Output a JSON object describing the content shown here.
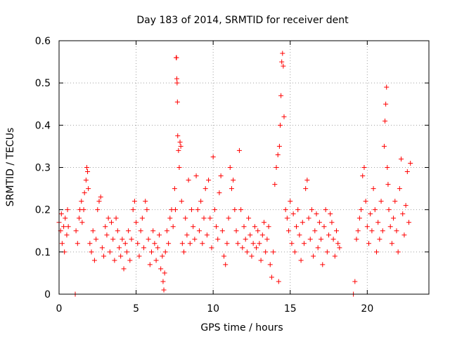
{
  "chart_data": {
    "type": "scatter",
    "title": "Day 183 of 2014, SRMTID for receiver dent",
    "xlabel": "GPS time / hours",
    "ylabel": "SRMTID / TECUs",
    "xlim": [
      0,
      24
    ],
    "ylim": [
      0,
      0.6
    ],
    "xticks": [
      0,
      5,
      10,
      15,
      20
    ],
    "yticks": [
      0,
      0.1,
      0.2,
      0.3,
      0.4,
      0.5,
      0.6
    ],
    "ytick_labels": [
      "0",
      "0.1",
      "0.2",
      "0.3",
      "0.4",
      "0.5",
      "0.6"
    ],
    "grid": true,
    "marker": "plus",
    "color": "#ff0000",
    "series": [
      {
        "name": "SRMTID",
        "points": [
          [
            0.0,
            0.17
          ],
          [
            0.1,
            0.15
          ],
          [
            0.15,
            0.19
          ],
          [
            0.2,
            0.12
          ],
          [
            0.3,
            0.16
          ],
          [
            0.35,
            0.1
          ],
          [
            0.4,
            0.18
          ],
          [
            0.5,
            0.14
          ],
          [
            0.55,
            0.2
          ],
          [
            0.6,
            0.16
          ],
          [
            1.05,
            0.0
          ],
          [
            1.1,
            0.15
          ],
          [
            1.2,
            0.12
          ],
          [
            1.3,
            0.18
          ],
          [
            1.35,
            0.2
          ],
          [
            1.45,
            0.22
          ],
          [
            1.5,
            0.17
          ],
          [
            1.6,
            0.2
          ],
          [
            1.65,
            0.24
          ],
          [
            1.75,
            0.27
          ],
          [
            1.8,
            0.3
          ],
          [
            1.85,
            0.29
          ],
          [
            1.9,
            0.25
          ],
          [
            2.0,
            0.12
          ],
          [
            2.1,
            0.1
          ],
          [
            2.2,
            0.15
          ],
          [
            2.3,
            0.08
          ],
          [
            2.4,
            0.13
          ],
          [
            2.5,
            0.2
          ],
          [
            2.6,
            0.22
          ],
          [
            2.7,
            0.23
          ],
          [
            2.8,
            0.11
          ],
          [
            2.9,
            0.09
          ],
          [
            3.0,
            0.16
          ],
          [
            3.1,
            0.14
          ],
          [
            3.2,
            0.18
          ],
          [
            3.3,
            0.1
          ],
          [
            3.4,
            0.17
          ],
          [
            3.5,
            0.13
          ],
          [
            3.6,
            0.08
          ],
          [
            3.7,
            0.18
          ],
          [
            3.8,
            0.15
          ],
          [
            3.9,
            0.11
          ],
          [
            4.0,
            0.09
          ],
          [
            4.1,
            0.13
          ],
          [
            4.2,
            0.06
          ],
          [
            4.3,
            0.12
          ],
          [
            4.4,
            0.1
          ],
          [
            4.5,
            0.15
          ],
          [
            4.6,
            0.08
          ],
          [
            4.7,
            0.13
          ],
          [
            4.8,
            0.2
          ],
          [
            4.9,
            0.22
          ],
          [
            5.0,
            0.17
          ],
          [
            5.1,
            0.12
          ],
          [
            5.2,
            0.09
          ],
          [
            5.3,
            0.15
          ],
          [
            5.4,
            0.18
          ],
          [
            5.5,
            0.11
          ],
          [
            5.6,
            0.22
          ],
          [
            5.7,
            0.2
          ],
          [
            5.8,
            0.13
          ],
          [
            5.9,
            0.07
          ],
          [
            6.0,
            0.1
          ],
          [
            6.1,
            0.15
          ],
          [
            6.2,
            0.12
          ],
          [
            6.3,
            0.08
          ],
          [
            6.4,
            0.11
          ],
          [
            6.5,
            0.14
          ],
          [
            6.6,
            0.06
          ],
          [
            6.7,
            0.09
          ],
          [
            6.75,
            0.03
          ],
          [
            6.8,
            0.01
          ],
          [
            6.85,
            0.05
          ],
          [
            6.9,
            0.1
          ],
          [
            7.0,
            0.15
          ],
          [
            7.1,
            0.12
          ],
          [
            7.2,
            0.18
          ],
          [
            7.3,
            0.2
          ],
          [
            7.4,
            0.16
          ],
          [
            7.5,
            0.25
          ],
          [
            7.55,
            0.2
          ],
          [
            7.6,
            0.56
          ],
          [
            7.62,
            0.56
          ],
          [
            7.64,
            0.51
          ],
          [
            7.66,
            0.5
          ],
          [
            7.68,
            0.455
          ],
          [
            7.7,
            0.375
          ],
          [
            7.75,
            0.34
          ],
          [
            7.8,
            0.3
          ],
          [
            7.85,
            0.36
          ],
          [
            7.9,
            0.35
          ],
          [
            7.95,
            0.22
          ],
          [
            8.0,
            0.12
          ],
          [
            8.1,
            0.1
          ],
          [
            8.2,
            0.18
          ],
          [
            8.3,
            0.14
          ],
          [
            8.4,
            0.27
          ],
          [
            8.5,
            0.12
          ],
          [
            8.6,
            0.2
          ],
          [
            8.7,
            0.16
          ],
          [
            8.8,
            0.13
          ],
          [
            8.9,
            0.28
          ],
          [
            9.0,
            0.2
          ],
          [
            9.1,
            0.15
          ],
          [
            9.2,
            0.22
          ],
          [
            9.3,
            0.12
          ],
          [
            9.4,
            0.18
          ],
          [
            9.5,
            0.25
          ],
          [
            9.6,
            0.14
          ],
          [
            9.7,
            0.27
          ],
          [
            9.8,
            0.18
          ],
          [
            9.9,
            0.11
          ],
          [
            10.0,
            0.325
          ],
          [
            10.1,
            0.2
          ],
          [
            10.2,
            0.16
          ],
          [
            10.3,
            0.13
          ],
          [
            10.4,
            0.24
          ],
          [
            10.5,
            0.28
          ],
          [
            10.6,
            0.15
          ],
          [
            10.7,
            0.09
          ],
          [
            10.8,
            0.07
          ],
          [
            10.9,
            0.12
          ],
          [
            11.0,
            0.18
          ],
          [
            11.1,
            0.3
          ],
          [
            11.2,
            0.25
          ],
          [
            11.3,
            0.27
          ],
          [
            11.4,
            0.2
          ],
          [
            11.5,
            0.15
          ],
          [
            11.6,
            0.12
          ],
          [
            11.7,
            0.34
          ],
          [
            11.8,
            0.2
          ],
          [
            11.9,
            0.11
          ],
          [
            12.0,
            0.16
          ],
          [
            12.1,
            0.13
          ],
          [
            12.2,
            0.1
          ],
          [
            12.3,
            0.18
          ],
          [
            12.4,
            0.14
          ],
          [
            12.5,
            0.09
          ],
          [
            12.6,
            0.12
          ],
          [
            12.7,
            0.16
          ],
          [
            12.8,
            0.11
          ],
          [
            12.9,
            0.15
          ],
          [
            13.0,
            0.12
          ],
          [
            13.1,
            0.08
          ],
          [
            13.2,
            0.14
          ],
          [
            13.3,
            0.17
          ],
          [
            13.4,
            0.1
          ],
          [
            13.5,
            0.13
          ],
          [
            13.6,
            0.16
          ],
          [
            13.7,
            0.07
          ],
          [
            13.8,
            0.04
          ],
          [
            13.9,
            0.1
          ],
          [
            14.0,
            0.26
          ],
          [
            14.1,
            0.3
          ],
          [
            14.2,
            0.33
          ],
          [
            14.25,
            0.03
          ],
          [
            14.3,
            0.35
          ],
          [
            14.35,
            0.4
          ],
          [
            14.4,
            0.47
          ],
          [
            14.45,
            0.55
          ],
          [
            14.5,
            0.57
          ],
          [
            14.55,
            0.54
          ],
          [
            14.6,
            0.42
          ],
          [
            14.7,
            0.2
          ],
          [
            14.8,
            0.18
          ],
          [
            14.9,
            0.15
          ],
          [
            15.0,
            0.22
          ],
          [
            15.1,
            0.12
          ],
          [
            15.2,
            0.19
          ],
          [
            15.3,
            0.1
          ],
          [
            15.4,
            0.16
          ],
          [
            15.5,
            0.2
          ],
          [
            15.6,
            0.14
          ],
          [
            15.7,
            0.08
          ],
          [
            15.8,
            0.17
          ],
          [
            15.9,
            0.12
          ],
          [
            16.0,
            0.25
          ],
          [
            16.1,
            0.27
          ],
          [
            16.2,
            0.18
          ],
          [
            16.3,
            0.13
          ],
          [
            16.4,
            0.2
          ],
          [
            16.5,
            0.09
          ],
          [
            16.6,
            0.15
          ],
          [
            16.7,
            0.19
          ],
          [
            16.8,
            0.11
          ],
          [
            16.9,
            0.17
          ],
          [
            17.0,
            0.13
          ],
          [
            17.1,
            0.07
          ],
          [
            17.2,
            0.16
          ],
          [
            17.3,
            0.2
          ],
          [
            17.4,
            0.1
          ],
          [
            17.5,
            0.14
          ],
          [
            17.6,
            0.19
          ],
          [
            17.7,
            0.17
          ],
          [
            17.8,
            0.13
          ],
          [
            17.9,
            0.09
          ],
          [
            18.0,
            0.15
          ],
          [
            18.1,
            0.12
          ],
          [
            18.2,
            0.11
          ],
          [
            19.1,
            0.0
          ],
          [
            19.2,
            0.03
          ],
          [
            19.3,
            0.13
          ],
          [
            19.4,
            0.15
          ],
          [
            19.5,
            0.18
          ],
          [
            19.6,
            0.2
          ],
          [
            19.7,
            0.28
          ],
          [
            19.8,
            0.3
          ],
          [
            19.9,
            0.22
          ],
          [
            20.0,
            0.16
          ],
          [
            20.1,
            0.12
          ],
          [
            20.2,
            0.19
          ],
          [
            20.3,
            0.15
          ],
          [
            20.4,
            0.25
          ],
          [
            20.5,
            0.2
          ],
          [
            20.6,
            0.1
          ],
          [
            20.7,
            0.17
          ],
          [
            20.8,
            0.13
          ],
          [
            20.9,
            0.22
          ],
          [
            21.0,
            0.15
          ],
          [
            21.1,
            0.35
          ],
          [
            21.15,
            0.41
          ],
          [
            21.2,
            0.45
          ],
          [
            21.25,
            0.49
          ],
          [
            21.3,
            0.3
          ],
          [
            21.35,
            0.26
          ],
          [
            21.4,
            0.2
          ],
          [
            21.5,
            0.16
          ],
          [
            21.6,
            0.12
          ],
          [
            21.7,
            0.18
          ],
          [
            21.8,
            0.22
          ],
          [
            21.9,
            0.15
          ],
          [
            22.0,
            0.1
          ],
          [
            22.1,
            0.25
          ],
          [
            22.2,
            0.32
          ],
          [
            22.3,
            0.19
          ],
          [
            22.4,
            0.14
          ],
          [
            22.5,
            0.21
          ],
          [
            22.6,
            0.29
          ],
          [
            22.7,
            0.17
          ],
          [
            22.8,
            0.31
          ]
        ]
      }
    ]
  }
}
